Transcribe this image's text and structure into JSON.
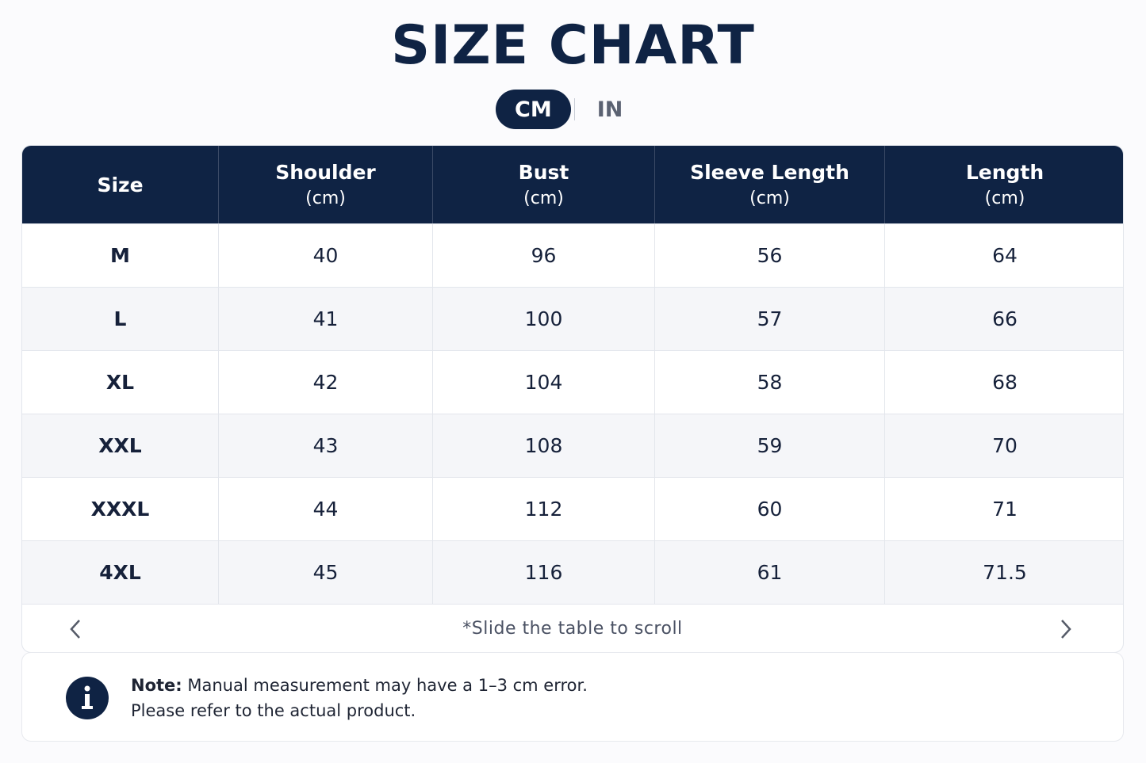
{
  "header": {
    "title": "SIZE CHART"
  },
  "tabs": {
    "items": [
      "CM",
      "IN"
    ],
    "active": 0
  },
  "table": {
    "columns": [
      {
        "name": "Size"
      },
      {
        "name": "Shoulder",
        "unit": "(cm)"
      },
      {
        "name": "Bust",
        "unit": "(cm)"
      },
      {
        "name": "Sleeve Length",
        "unit": "(cm)"
      },
      {
        "name": "Length",
        "unit": "(cm)"
      }
    ],
    "rows": [
      [
        "M",
        40,
        96,
        56,
        64
      ],
      [
        "L",
        41,
        100,
        57,
        66
      ],
      [
        "XL",
        42,
        104,
        58,
        68
      ],
      [
        "XXL",
        43,
        108,
        59,
        70
      ],
      [
        "XXXL",
        44,
        112,
        60,
        71
      ],
      [
        "4XL",
        45,
        116,
        61,
        71.5
      ]
    ],
    "scroll_hint": "*Slide the table to scroll"
  },
  "note": {
    "label": "Note:",
    "line1": "Manual measurement may have a 1–3 cm error.",
    "line2": "Please refer to the actual product."
  }
}
